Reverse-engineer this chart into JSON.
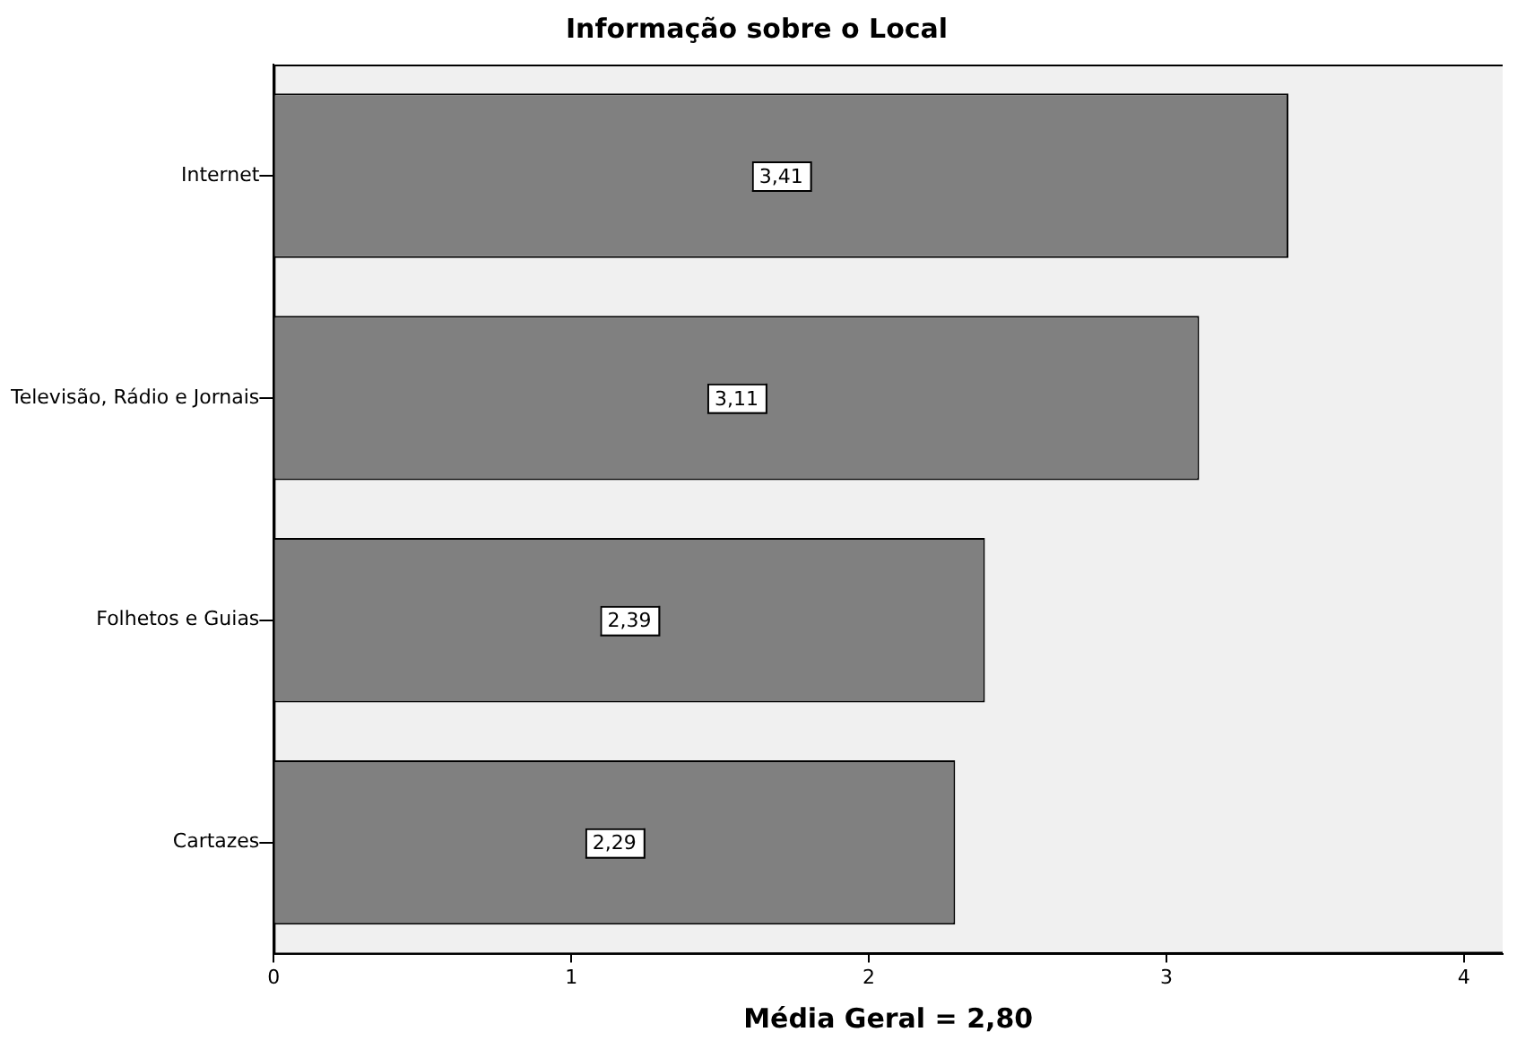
{
  "chart_data": {
    "type": "bar",
    "orientation": "horizontal",
    "title": "Informação sobre o Local",
    "xlabel": "Média Geral = 2,80",
    "categories": [
      "Internet",
      "Televisão, Rádio e Jornais",
      "Folhetos e Guias",
      "Cartazes"
    ],
    "values": [
      3.41,
      3.11,
      2.39,
      2.29
    ],
    "value_labels": [
      "3,41",
      "3,11",
      "2,39",
      "2,29"
    ],
    "color": "#808080",
    "xlim": [
      0,
      4.13
    ],
    "xticks": [
      0,
      1,
      2,
      3,
      4
    ],
    "grid": false,
    "legend": false
  }
}
